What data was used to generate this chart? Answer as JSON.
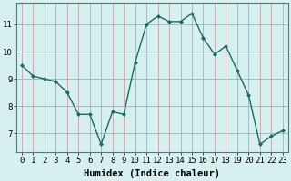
{
  "x": [
    0,
    1,
    2,
    3,
    4,
    5,
    6,
    7,
    8,
    9,
    10,
    11,
    12,
    13,
    14,
    15,
    16,
    17,
    18,
    19,
    20,
    21,
    22,
    23
  ],
  "y": [
    9.5,
    9.1,
    9.0,
    8.9,
    8.5,
    7.7,
    7.7,
    6.6,
    7.8,
    7.7,
    9.6,
    11.0,
    11.3,
    11.1,
    11.1,
    11.4,
    10.5,
    9.9,
    10.2,
    9.3,
    8.4,
    6.6,
    6.9,
    7.1
  ],
  "line_color": "#1a6b5e",
  "marker": "D",
  "marker_size": 2.0,
  "bg_color": "#d6f0f0",
  "grid_color_v": "#c8a0a0",
  "grid_color_h": "#c8a0a0",
  "xlabel": "Humidex (Indice chaleur)",
  "xlabel_fontsize": 7.5,
  "tick_fontsize": 6.5,
  "yticks": [
    7,
    8,
    9,
    10,
    11
  ],
  "ylim": [
    6.3,
    11.8
  ],
  "xlim": [
    -0.5,
    23.5
  ]
}
